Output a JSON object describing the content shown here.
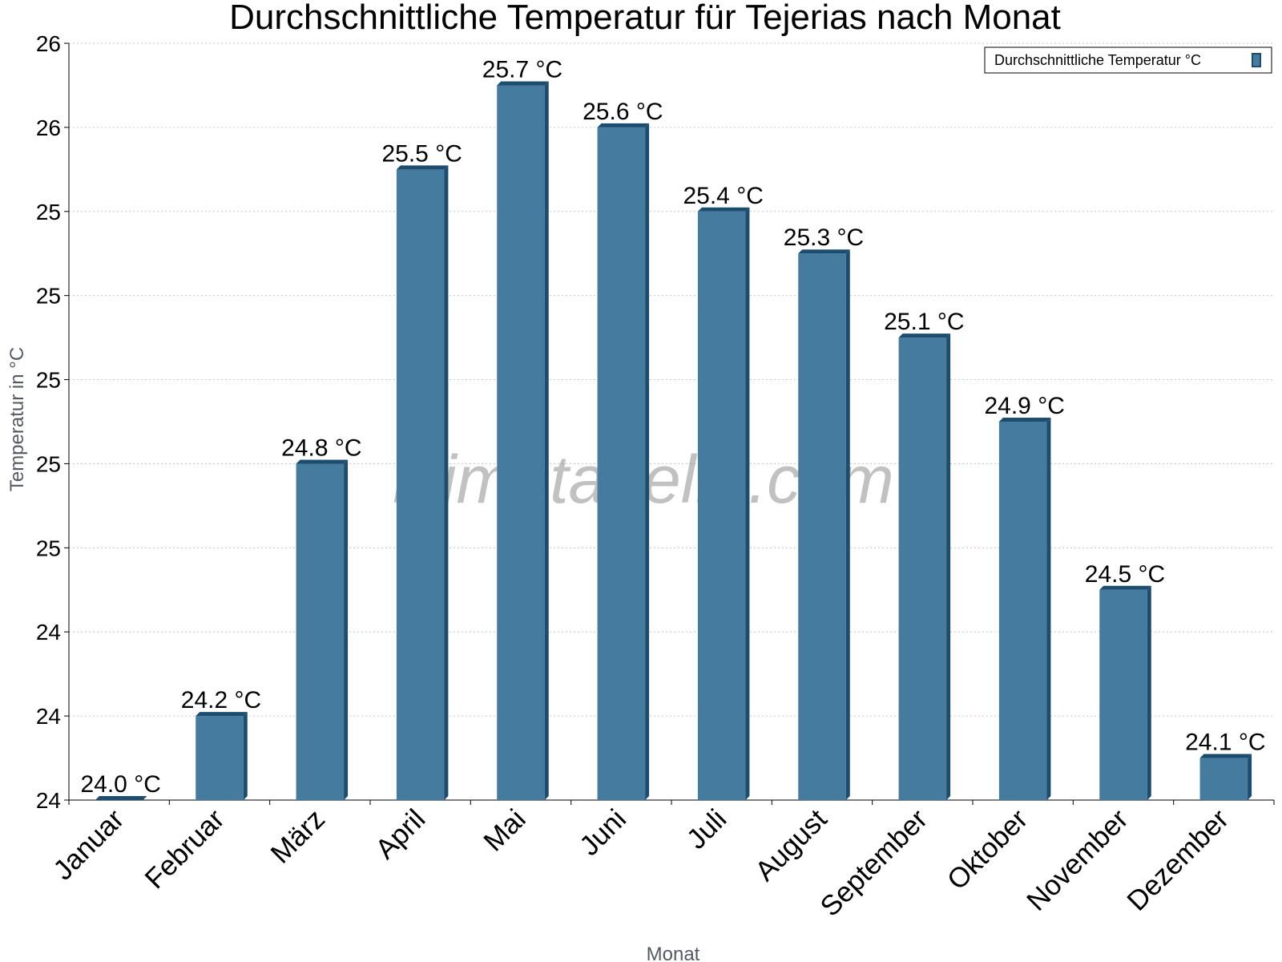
{
  "chart_data": {
    "type": "bar",
    "title": "Durchschnittliche Temperatur für Tejerias nach Monat",
    "xlabel": "Monat",
    "ylabel": "Temperatur in °C",
    "categories": [
      "Januar",
      "Februar",
      "März",
      "April",
      "Mai",
      "Juni",
      "Juli",
      "August",
      "September",
      "Oktober",
      "November",
      "Dezember"
    ],
    "series": [
      {
        "name": "Durchschnittliche Temperatur °C",
        "values": [
          24.0,
          24.2,
          24.8,
          25.5,
          25.7,
          25.6,
          25.4,
          25.3,
          25.1,
          24.9,
          24.5,
          24.1
        ],
        "color": "#467ba0",
        "edge_color": "#1d4d6e"
      }
    ],
    "data_labels": [
      "24.0 °C",
      "24.2 °C",
      "24.8 °C",
      "25.5 °C",
      "25.7 °C",
      "25.6 °C",
      "25.4 °C",
      "25.3 °C",
      "25.1 °C",
      "24.9 °C",
      "24.5 °C",
      "24.1 °C"
    ],
    "ylim": [
      24.0,
      25.8
    ],
    "yticks": [
      24.0,
      24.2,
      24.4,
      24.6,
      24.8,
      25.0,
      25.2,
      25.4,
      25.6,
      25.8
    ],
    "ytick_labels": [
      "24",
      "24",
      "24",
      "25",
      "25",
      "25",
      "25",
      "25",
      "26",
      "26"
    ],
    "grid": true,
    "legend_position": "top-right",
    "watermark": "klimatabelle.com"
  }
}
